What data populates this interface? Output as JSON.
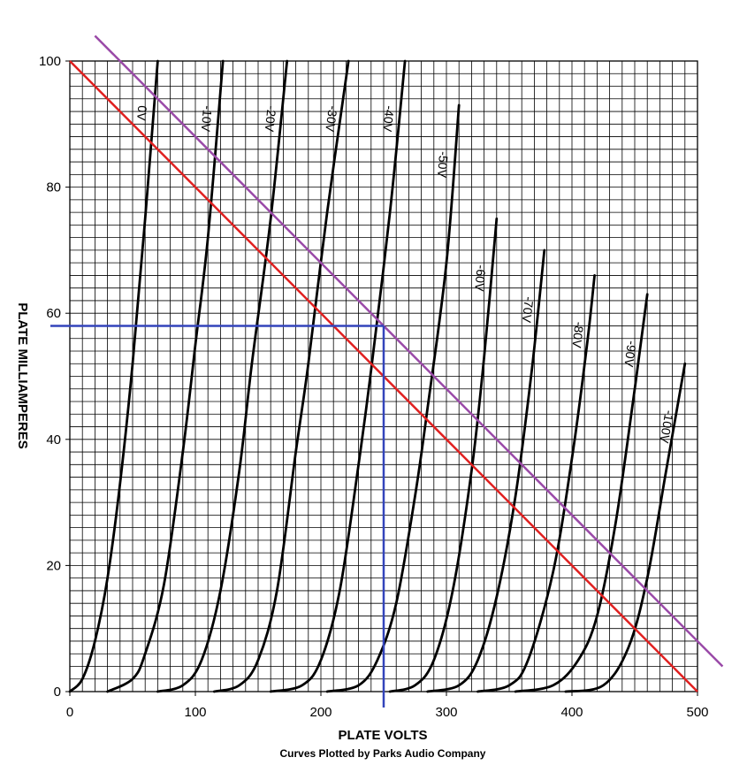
{
  "chart_data": {
    "type": "line",
    "xlabel": "PLATE VOLTS",
    "ylabel": "PLATE MILLIAMPERES",
    "credit": "Curves Plotted by Parks Audio Company",
    "xlim": [
      0,
      500
    ],
    "ylim": [
      0,
      100
    ],
    "x_ticks": [
      "0",
      "100",
      "200",
      "300",
      "400",
      "500"
    ],
    "y_ticks": [
      "0",
      "20",
      "40",
      "60",
      "80",
      "100"
    ],
    "grid": true,
    "series": [
      {
        "name": "0V",
        "points": [
          [
            0,
            0
          ],
          [
            10,
            2
          ],
          [
            20,
            8
          ],
          [
            30,
            18
          ],
          [
            40,
            33
          ],
          [
            50,
            52
          ],
          [
            60,
            75
          ],
          [
            70,
            100
          ]
        ]
      },
      {
        "name": "-10V",
        "points": [
          [
            30,
            0
          ],
          [
            50,
            2
          ],
          [
            60,
            6
          ],
          [
            75,
            17
          ],
          [
            90,
            38
          ],
          [
            100,
            55
          ],
          [
            110,
            72
          ],
          [
            122,
            100
          ]
        ]
      },
      {
        "name": "-20V",
        "points": [
          [
            70,
            0
          ],
          [
            90,
            1
          ],
          [
            105,
            5
          ],
          [
            120,
            16
          ],
          [
            135,
            35
          ],
          [
            145,
            52
          ],
          [
            160,
            75
          ],
          [
            173,
            100
          ]
        ]
      },
      {
        "name": "-30V",
        "points": [
          [
            115,
            0
          ],
          [
            135,
            1
          ],
          [
            150,
            5
          ],
          [
            165,
            16
          ],
          [
            180,
            38
          ],
          [
            190,
            52
          ],
          [
            205,
            76
          ],
          [
            222,
            100
          ]
        ]
      },
      {
        "name": "-40V",
        "points": [
          [
            160,
            0
          ],
          [
            185,
            1
          ],
          [
            200,
            5
          ],
          [
            215,
            16
          ],
          [
            230,
            36
          ],
          [
            240,
            51
          ],
          [
            255,
            76
          ],
          [
            267,
            100
          ]
        ]
      },
      {
        "name": "-50V",
        "points": [
          [
            205,
            0
          ],
          [
            230,
            1
          ],
          [
            245,
            5
          ],
          [
            260,
            14
          ],
          [
            275,
            31
          ],
          [
            285,
            45
          ],
          [
            300,
            68
          ],
          [
            310,
            93
          ]
        ]
      },
      {
        "name": "-60V",
        "points": [
          [
            255,
            0
          ],
          [
            275,
            1
          ],
          [
            290,
            5
          ],
          [
            305,
            16
          ],
          [
            320,
            35
          ],
          [
            330,
            53
          ],
          [
            340,
            75
          ]
        ]
      },
      {
        "name": "-70V",
        "points": [
          [
            285,
            0
          ],
          [
            310,
            1
          ],
          [
            325,
            5
          ],
          [
            340,
            15
          ],
          [
            355,
            31
          ],
          [
            368,
            51
          ],
          [
            378,
            70
          ]
        ]
      },
      {
        "name": "-80V",
        "points": [
          [
            325,
            0
          ],
          [
            350,
            1
          ],
          [
            365,
            5
          ],
          [
            385,
            19
          ],
          [
            400,
            37
          ],
          [
            412,
            55
          ],
          [
            418,
            66
          ]
        ]
      },
      {
        "name": "-90V",
        "points": [
          [
            355,
            0
          ],
          [
            385,
            1
          ],
          [
            405,
            5
          ],
          [
            420,
            12
          ],
          [
            435,
            27
          ],
          [
            450,
            48
          ],
          [
            460,
            63
          ]
        ]
      },
      {
        "name": "-100V",
        "points": [
          [
            395,
            0
          ],
          [
            425,
            1
          ],
          [
            445,
            7
          ],
          [
            460,
            18
          ],
          [
            475,
            35
          ],
          [
            490,
            52
          ]
        ]
      }
    ],
    "load_lines": [
      {
        "color": "#e02020",
        "points": [
          [
            0,
            100
          ],
          [
            500,
            0
          ]
        ]
      },
      {
        "color": "#9a4aa8",
        "points": [
          [
            20,
            104
          ],
          [
            520,
            4
          ]
        ]
      }
    ],
    "operating_point": {
      "color": "#3344bb",
      "x": 250,
      "y": 58
    }
  }
}
